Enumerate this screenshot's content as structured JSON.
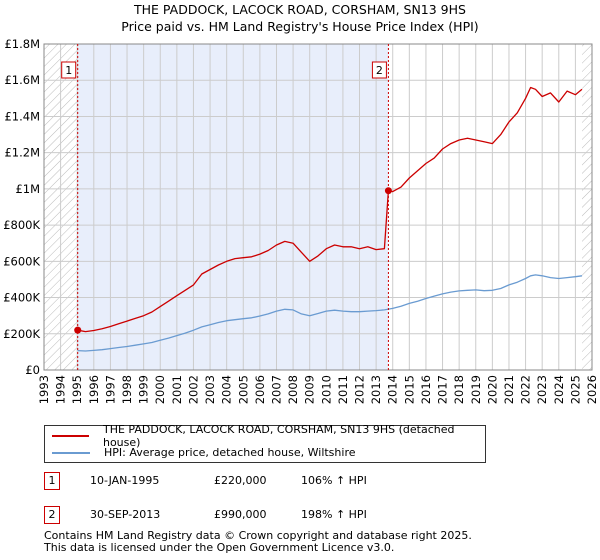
{
  "title_line1": "THE PADDOCK, LACOCK ROAD, CORSHAM, SN13 9HS",
  "title_line2": "Price paid vs. HM Land Registry's House Price Index (HPI)",
  "colors": {
    "property": "#cc0000",
    "hpi": "#6a9bd1",
    "shade": "#e8eefb",
    "grid": "#cccccc",
    "marker_vline": "#cc0000",
    "hatch": "#bbbbbb"
  },
  "chart_data": {
    "type": "line",
    "title": "THE PADDOCK, LACOCK ROAD, CORSHAM, SN13 9HS — Price paid vs. HM Land Registry's House Price Index (HPI)",
    "xlabel": "",
    "ylabel": "",
    "xlim": [
      1993,
      2026
    ],
    "ylim": [
      0,
      1800000
    ],
    "x_ticks": [
      "1993",
      "1994",
      "1995",
      "1996",
      "1997",
      "1998",
      "1999",
      "2000",
      "2001",
      "2002",
      "2003",
      "2004",
      "2005",
      "2006",
      "2007",
      "2008",
      "2009",
      "2010",
      "2011",
      "2012",
      "2013",
      "2014",
      "2015",
      "2016",
      "2017",
      "2018",
      "2019",
      "2020",
      "2021",
      "2022",
      "2023",
      "2024",
      "2025",
      "2026"
    ],
    "y_ticks": [
      {
        "value": 0,
        "label": "£0"
      },
      {
        "value": 200000,
        "label": "£200K"
      },
      {
        "value": 400000,
        "label": "£400K"
      },
      {
        "value": 600000,
        "label": "£600K"
      },
      {
        "value": 800000,
        "label": "£800K"
      },
      {
        "value": 1000000,
        "label": "£1M"
      },
      {
        "value": 1200000,
        "label": "£1.2M"
      },
      {
        "value": 1400000,
        "label": "£1.4M"
      },
      {
        "value": 1600000,
        "label": "£1.6M"
      },
      {
        "value": 1800000,
        "label": "£1.8M"
      }
    ],
    "grid": true,
    "series": [
      {
        "name": "THE PADDOCK, LACOCK ROAD, CORSHAM, SN13 9HS (detached house)",
        "color": "#cc0000",
        "x": [
          1995.03,
          1995.5,
          1996,
          1996.5,
          1997,
          1997.5,
          1998,
          1998.5,
          1999,
          1999.5,
          2000,
          2000.5,
          2001,
          2001.5,
          2002,
          2002.5,
          2003,
          2003.5,
          2004,
          2004.5,
          2005,
          2005.5,
          2006,
          2006.5,
          2007,
          2007.5,
          2008,
          2008.5,
          2009,
          2009.5,
          2010,
          2010.5,
          2011,
          2011.5,
          2012,
          2012.5,
          2013,
          2013.5,
          2013.74,
          2014,
          2014.5,
          2015,
          2015.5,
          2016,
          2016.5,
          2017,
          2017.5,
          2018,
          2018.5,
          2019,
          2019.5,
          2020,
          2020.5,
          2021,
          2021.5,
          2022,
          2022.3,
          2022.6,
          2023,
          2023.5,
          2024,
          2024.5,
          2025,
          2025.4
        ],
        "values": [
          220000,
          212000,
          218000,
          228000,
          240000,
          255000,
          270000,
          285000,
          300000,
          320000,
          350000,
          380000,
          410000,
          440000,
          470000,
          530000,
          555000,
          580000,
          600000,
          615000,
          620000,
          625000,
          640000,
          660000,
          690000,
          710000,
          700000,
          650000,
          600000,
          630000,
          670000,
          690000,
          680000,
          680000,
          670000,
          680000,
          665000,
          670000,
          990000,
          985000,
          1010000,
          1060000,
          1100000,
          1140000,
          1170000,
          1220000,
          1250000,
          1270000,
          1280000,
          1270000,
          1260000,
          1250000,
          1300000,
          1370000,
          1420000,
          1500000,
          1560000,
          1550000,
          1510000,
          1530000,
          1480000,
          1540000,
          1520000,
          1550000
        ]
      },
      {
        "name": "HPI: Average price, detached house, Wiltshire",
        "color": "#6a9bd1",
        "x": [
          1995.03,
          1995.5,
          1996,
          1996.5,
          1997,
          1997.5,
          1998,
          1998.5,
          1999,
          1999.5,
          2000,
          2000.5,
          2001,
          2001.5,
          2002,
          2002.5,
          2003,
          2003.5,
          2004,
          2004.5,
          2005,
          2005.5,
          2006,
          2006.5,
          2007,
          2007.5,
          2008,
          2008.5,
          2009,
          2009.5,
          2010,
          2010.5,
          2011,
          2011.5,
          2012,
          2012.5,
          2013,
          2013.5,
          2014,
          2014.5,
          2015,
          2015.5,
          2016,
          2016.5,
          2017,
          2017.5,
          2018,
          2018.5,
          2019,
          2019.5,
          2020,
          2020.5,
          2021,
          2021.5,
          2022,
          2022.3,
          2022.6,
          2023,
          2023.5,
          2024,
          2024.5,
          2025,
          2025.4
        ],
        "values": [
          107000,
          105000,
          108000,
          112000,
          118000,
          124000,
          130000,
          137000,
          144000,
          152000,
          164000,
          176000,
          190000,
          204000,
          220000,
          238000,
          250000,
          262000,
          272000,
          278000,
          283000,
          288000,
          298000,
          310000,
          325000,
          335000,
          332000,
          310000,
          300000,
          312000,
          325000,
          330000,
          325000,
          322000,
          322000,
          325000,
          328000,
          332000,
          340000,
          352000,
          368000,
          380000,
          395000,
          408000,
          420000,
          430000,
          437000,
          440000,
          442000,
          438000,
          440000,
          450000,
          470000,
          485000,
          505000,
          520000,
          525000,
          520000,
          510000,
          505000,
          510000,
          515000,
          520000
        ]
      }
    ],
    "annotations": [
      {
        "label": "1",
        "x": 1995.03,
        "value": 220000
      },
      {
        "label": "2",
        "x": 2013.74,
        "value": 990000
      }
    ],
    "shaded_region": [
      1995.03,
      2013.74
    ],
    "hatched_regions": [
      [
        1993,
        1995.03
      ],
      [
        2025.4,
        2026
      ]
    ]
  },
  "legend": {
    "property_label": "THE PADDOCK, LACOCK ROAD, CORSHAM, SN13 9HS (detached house)",
    "hpi_label": "HPI: Average price, detached house, Wiltshire"
  },
  "sales": [
    {
      "badge": "1",
      "date": "10-JAN-1995",
      "price": "£220,000",
      "hpi": "106% ↑ HPI"
    },
    {
      "badge": "2",
      "date": "30-SEP-2013",
      "price": "£990,000",
      "hpi": "198% ↑ HPI"
    }
  ],
  "footer_line1": "Contains HM Land Registry data © Crown copyright and database right 2025.",
  "footer_line2": "This data is licensed under the Open Government Licence v3.0."
}
